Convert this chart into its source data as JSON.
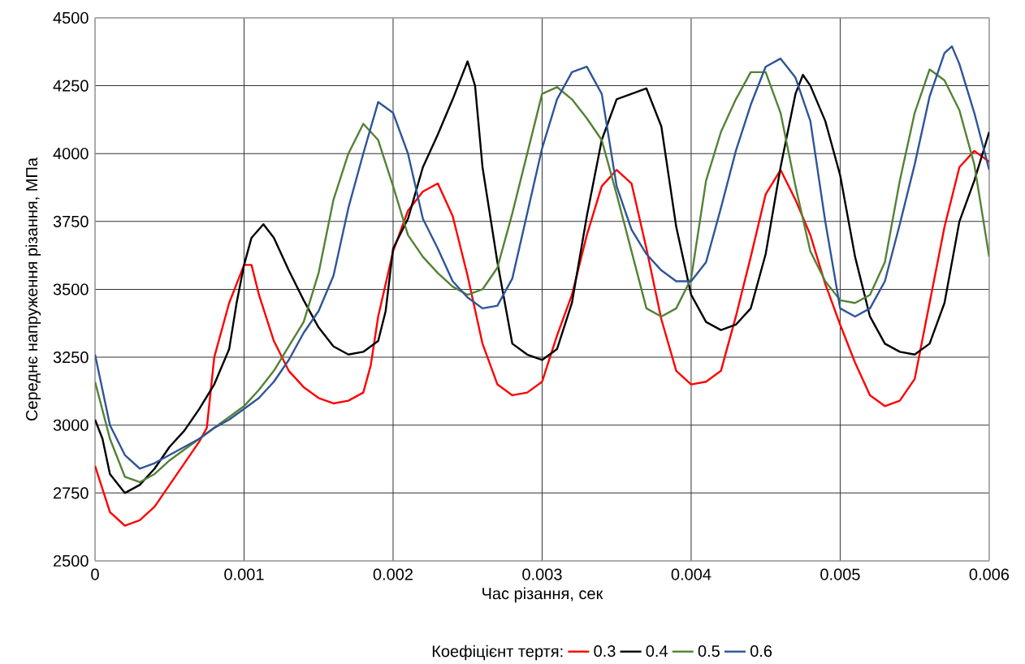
{
  "chart_data": {
    "type": "line",
    "xlabel": "Час різання, сек",
    "ylabel": "Середнє напруження різання, МПа",
    "legend_title": "Коефіцієнт тертя:",
    "xlim": [
      0,
      0.006
    ],
    "ylim": [
      2500,
      4500
    ],
    "xticks": [
      0,
      0.001,
      0.002,
      0.003,
      0.004,
      0.005,
      0.006
    ],
    "yticks": [
      2500,
      2750,
      3000,
      3250,
      3500,
      3750,
      4000,
      4250,
      4500
    ],
    "grid": true,
    "legend": "bottom",
    "series": [
      {
        "name": "0.3",
        "color": "#ff0000",
        "x": [
          0,
          0.0001,
          0.0002,
          0.0003,
          0.0004,
          0.0005,
          0.0006,
          0.0007,
          0.00075,
          0.0008,
          0.0009,
          0.001,
          0.00105,
          0.0011,
          0.0012,
          0.0013,
          0.0014,
          0.0015,
          0.0016,
          0.0017,
          0.0018,
          0.00185,
          0.0019,
          0.002,
          0.0021,
          0.0022,
          0.0023,
          0.0024,
          0.0025,
          0.0026,
          0.0027,
          0.0028,
          0.0029,
          0.003,
          0.0031,
          0.0032,
          0.0033,
          0.0034,
          0.0035,
          0.0036,
          0.0037,
          0.0038,
          0.0039,
          0.004,
          0.0041,
          0.0042,
          0.0043,
          0.0044,
          0.0045,
          0.0046,
          0.0047,
          0.0048,
          0.0049,
          0.005,
          0.0051,
          0.0052,
          0.0053,
          0.0054,
          0.0055,
          0.0056,
          0.0057,
          0.0058,
          0.0059,
          0.006
        ],
        "values": [
          2850,
          2680,
          2630,
          2650,
          2700,
          2780,
          2860,
          2940,
          2990,
          3250,
          3450,
          3590,
          3590,
          3480,
          3310,
          3200,
          3140,
          3100,
          3080,
          3090,
          3120,
          3220,
          3400,
          3640,
          3790,
          3860,
          3890,
          3770,
          3550,
          3300,
          3150,
          3110,
          3120,
          3160,
          3330,
          3480,
          3700,
          3880,
          3940,
          3890,
          3650,
          3390,
          3200,
          3150,
          3160,
          3200,
          3400,
          3620,
          3850,
          3940,
          3830,
          3700,
          3520,
          3370,
          3230,
          3110,
          3070,
          3090,
          3170,
          3450,
          3730,
          3950,
          4010,
          3970
        ]
      },
      {
        "name": "0.4",
        "color": "#000000",
        "x": [
          0,
          5e-05,
          0.0001,
          0.0002,
          0.0003,
          0.0004,
          0.0005,
          0.0006,
          0.0007,
          0.0008,
          0.0009,
          0.00095,
          0.001,
          0.00105,
          0.00113,
          0.0012,
          0.0013,
          0.0014,
          0.0015,
          0.0016,
          0.0017,
          0.0018,
          0.0019,
          0.00195,
          0.002,
          0.0021,
          0.0022,
          0.0023,
          0.0024,
          0.0025,
          0.00255,
          0.0026,
          0.0027,
          0.0028,
          0.0029,
          0.003,
          0.0031,
          0.0032,
          0.0033,
          0.0034,
          0.0035,
          0.0036,
          0.0037,
          0.0038,
          0.0039,
          0.004,
          0.0041,
          0.0042,
          0.0043,
          0.0044,
          0.0045,
          0.0046,
          0.0047,
          0.00475,
          0.0048,
          0.0049,
          0.005,
          0.0051,
          0.0052,
          0.0053,
          0.0054,
          0.0055,
          0.0056,
          0.0057,
          0.0058,
          0.0059,
          0.006
        ],
        "values": [
          3020,
          2950,
          2820,
          2750,
          2780,
          2840,
          2920,
          2980,
          3060,
          3150,
          3280,
          3450,
          3590,
          3690,
          3740,
          3690,
          3570,
          3460,
          3360,
          3290,
          3260,
          3270,
          3310,
          3420,
          3650,
          3760,
          3950,
          4070,
          4200,
          4340,
          4250,
          3950,
          3600,
          3300,
          3260,
          3240,
          3280,
          3450,
          3770,
          4050,
          4200,
          4220,
          4240,
          4100,
          3730,
          3480,
          3380,
          3350,
          3370,
          3430,
          3630,
          3950,
          4220,
          4290,
          4250,
          4120,
          3920,
          3620,
          3400,
          3300,
          3270,
          3260,
          3300,
          3450,
          3750,
          3900,
          4080
        ]
      },
      {
        "name": "0.5",
        "color": "#548235",
        "x": [
          0,
          0.0001,
          0.0002,
          0.0003,
          0.0004,
          0.0005,
          0.0006,
          0.0007,
          0.0008,
          0.0009,
          0.001,
          0.0011,
          0.0012,
          0.0013,
          0.0014,
          0.0015,
          0.0016,
          0.0017,
          0.0018,
          0.0019,
          0.002,
          0.0021,
          0.0022,
          0.0023,
          0.0024,
          0.0025,
          0.0026,
          0.0027,
          0.0028,
          0.0029,
          0.003,
          0.0031,
          0.0032,
          0.0033,
          0.0034,
          0.0035,
          0.0036,
          0.0037,
          0.0038,
          0.0039,
          0.004,
          0.0041,
          0.0042,
          0.0043,
          0.0044,
          0.0045,
          0.0046,
          0.0047,
          0.0048,
          0.0049,
          0.005,
          0.0051,
          0.0052,
          0.0053,
          0.0054,
          0.0055,
          0.0056,
          0.0057,
          0.0058,
          0.0059,
          0.006
        ],
        "values": [
          3160,
          2950,
          2810,
          2790,
          2820,
          2870,
          2910,
          2950,
          2990,
          3030,
          3070,
          3130,
          3200,
          3290,
          3380,
          3560,
          3830,
          4000,
          4110,
          4050,
          3880,
          3700,
          3620,
          3560,
          3510,
          3480,
          3500,
          3580,
          3780,
          4000,
          4220,
          4245,
          4200,
          4130,
          4050,
          3850,
          3640,
          3430,
          3400,
          3430,
          3540,
          3900,
          4080,
          4200,
          4300,
          4300,
          4150,
          3880,
          3640,
          3530,
          3460,
          3450,
          3480,
          3600,
          3900,
          4150,
          4310,
          4270,
          4160,
          3960,
          3620
        ]
      },
      {
        "name": "0.6",
        "color": "#2f5597",
        "x": [
          0,
          0.0001,
          0.0002,
          0.0003,
          0.0004,
          0.0005,
          0.0006,
          0.0007,
          0.0008,
          0.0009,
          0.001,
          0.0011,
          0.0012,
          0.0013,
          0.0014,
          0.0015,
          0.0016,
          0.0017,
          0.0018,
          0.0019,
          0.002,
          0.0021,
          0.0022,
          0.0023,
          0.0024,
          0.0025,
          0.0026,
          0.0027,
          0.0028,
          0.0029,
          0.003,
          0.0031,
          0.0032,
          0.0033,
          0.0034,
          0.0035,
          0.0036,
          0.0037,
          0.0038,
          0.0039,
          0.004,
          0.0041,
          0.0042,
          0.0043,
          0.0044,
          0.0045,
          0.0046,
          0.0047,
          0.0048,
          0.0049,
          0.005,
          0.0051,
          0.0052,
          0.0053,
          0.0054,
          0.0055,
          0.0056,
          0.0057,
          0.00575,
          0.0058,
          0.0059,
          0.006
        ],
        "values": [
          3260,
          3000,
          2890,
          2840,
          2860,
          2890,
          2920,
          2950,
          2990,
          3020,
          3060,
          3100,
          3160,
          3240,
          3340,
          3420,
          3550,
          3800,
          4000,
          4190,
          4150,
          4000,
          3760,
          3650,
          3530,
          3470,
          3430,
          3440,
          3540,
          3780,
          4020,
          4200,
          4300,
          4320,
          4220,
          3880,
          3720,
          3630,
          3570,
          3530,
          3530,
          3600,
          3800,
          4010,
          4180,
          4320,
          4350,
          4280,
          4120,
          3750,
          3430,
          3400,
          3430,
          3530,
          3740,
          3960,
          4210,
          4370,
          4395,
          4330,
          4150,
          3940
        ]
      }
    ]
  }
}
